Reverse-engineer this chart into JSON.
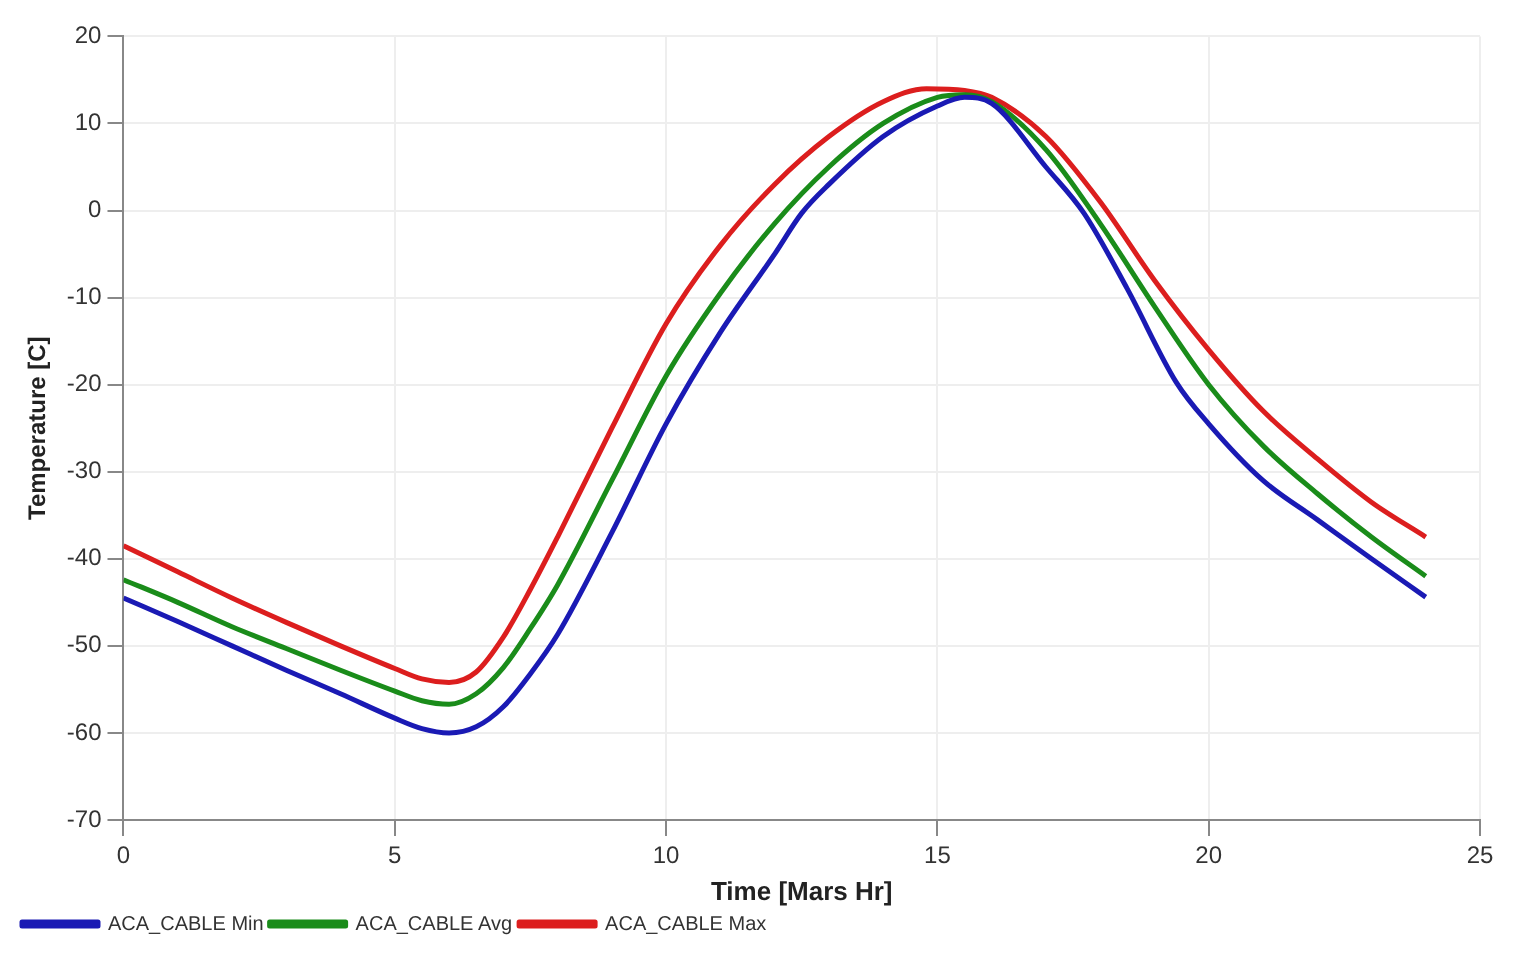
{
  "chart_data": {
    "type": "line",
    "xlabel": "Time [Mars Hr]",
    "ylabel": "Temperature [C]",
    "xlim": [
      0,
      25
    ],
    "xticks": [
      0,
      5,
      10,
      15,
      20,
      25
    ],
    "ylim": [
      -70,
      20
    ],
    "yticks": [
      -70,
      -60,
      -50,
      -40,
      -30,
      -20,
      -10,
      0,
      10,
      20
    ],
    "grid": true,
    "legend": "bottom left",
    "marker": "none",
    "line_style": "solid",
    "series": [
      {
        "name": "ACA_CABLE Min",
        "color": "#1a1ab4",
        "x": [
          0,
          1,
          2,
          3,
          4,
          5,
          5.5,
          6,
          6.5,
          7,
          7.5,
          8,
          9,
          10,
          11,
          12,
          12.5,
          13,
          14,
          15,
          15.5,
          16,
          17,
          17.7,
          18.5,
          19.4,
          20,
          21,
          22,
          23,
          24
        ],
        "values": [
          -44.5,
          -47.2,
          -50,
          -52.8,
          -55.5,
          -58.3,
          -59.5,
          -60,
          -59.3,
          -57,
          -53.2,
          -48.7,
          -37,
          -24.5,
          -14,
          -5,
          -0.3,
          3,
          8.5,
          12,
          13,
          12.3,
          5,
          -0.3,
          -9,
          -19.7,
          -24.5,
          -31,
          -35.5,
          -40,
          -44.4
        ]
      },
      {
        "name": "ACA_CABLE Avg",
        "color": "#1a8c1a",
        "x": [
          0,
          1,
          2,
          3,
          4,
          5,
          5.5,
          6,
          6.5,
          7,
          7.5,
          8,
          9,
          10,
          11,
          12,
          13,
          14,
          15,
          15.5,
          16,
          17,
          18,
          19,
          20,
          21,
          22,
          23,
          24
        ],
        "values": [
          -42.4,
          -45,
          -47.8,
          -50.3,
          -52.8,
          -55.2,
          -56.3,
          -56.7,
          -55.5,
          -52.5,
          -48,
          -43,
          -31,
          -19,
          -9.5,
          -1.5,
          5,
          10,
          13,
          13.3,
          12.5,
          7,
          -1.5,
          -11,
          -20,
          -27,
          -32.5,
          -37.5,
          -42
        ]
      },
      {
        "name": "ACA_CABLE Max",
        "color": "#dc1e1e",
        "x": [
          0,
          1,
          2,
          3,
          4,
          5,
          5.5,
          6,
          6.5,
          7,
          7.5,
          8,
          9,
          10,
          11,
          12,
          13,
          14,
          14.8,
          15.5,
          16,
          17,
          18,
          19,
          20,
          21,
          22,
          23,
          24
        ],
        "values": [
          -38.5,
          -41.5,
          -44.5,
          -47.3,
          -50,
          -52.6,
          -53.8,
          -54.2,
          -53,
          -49,
          -43.5,
          -37.5,
          -25,
          -13,
          -4,
          3,
          8.5,
          12.5,
          14,
          13.8,
          13,
          8.5,
          1,
          -8,
          -16,
          -23,
          -28.5,
          -33.5,
          -37.5
        ]
      }
    ]
  }
}
